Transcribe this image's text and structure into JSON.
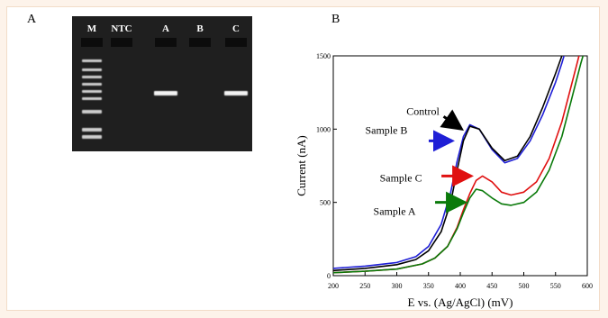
{
  "panels": {
    "left_label": "A",
    "right_label": "B"
  },
  "gel": {
    "lanes": [
      "M",
      "NTC",
      "A",
      "B",
      "C"
    ],
    "ladder_band_count": 9,
    "bands_present": {
      "M": true,
      "NTC": false,
      "A": true,
      "B": false,
      "C": true
    }
  },
  "chart_data": {
    "type": "line",
    "xlabel": "E vs. (Ag/AgCl) (mV)",
    "ylabel": "Current (nA)",
    "xlim": [
      200,
      600
    ],
    "ylim": [
      0,
      1500
    ],
    "xticks": [
      200,
      250,
      300,
      350,
      400,
      450,
      500,
      550,
      600
    ],
    "yticks": [
      0,
      500,
      1000,
      1500
    ],
    "grid": false,
    "annotations": [
      {
        "text": "Control",
        "color": "#000000",
        "arrow_to": [
          405,
          1000
        ]
      },
      {
        "text": "Sample B",
        "color": "#1f1fd6",
        "arrow_to": [
          390,
          920
        ]
      },
      {
        "text": "Sample C",
        "color": "#e01010",
        "arrow_to": [
          420,
          680
        ]
      },
      {
        "text": "Sample A",
        "color": "#0a7a0a",
        "arrow_to": [
          410,
          500
        ]
      }
    ],
    "series": [
      {
        "color": "#1f1fd6",
        "x": [
          200,
          250,
          300,
          330,
          350,
          370,
          385,
          395,
          405,
          415,
          430,
          450,
          470,
          490,
          510,
          530,
          550,
          560,
          570,
          580
        ],
        "y": [
          50,
          65,
          90,
          130,
          200,
          350,
          570,
          780,
          950,
          1030,
          1000,
          860,
          770,
          800,
          920,
          1100,
          1320,
          1450,
          1600,
          1750
        ]
      },
      {
        "color": "#000000",
        "x": [
          200,
          250,
          300,
          330,
          350,
          370,
          385,
          395,
          405,
          415,
          430,
          450,
          470,
          490,
          510,
          530,
          550,
          560,
          570,
          580
        ],
        "y": [
          35,
          50,
          75,
          110,
          170,
          300,
          500,
          720,
          920,
          1020,
          1000,
          870,
          785,
          815,
          950,
          1150,
          1380,
          1500,
          1650,
          1800
        ]
      },
      {
        "color": "#e01010",
        "x": [
          200,
          250,
          300,
          340,
          360,
          380,
          395,
          405,
          415,
          425,
          435,
          450,
          465,
          480,
          500,
          520,
          540,
          560,
          575,
          590,
          600
        ],
        "y": [
          20,
          30,
          45,
          80,
          120,
          200,
          330,
          450,
          560,
          650,
          680,
          640,
          570,
          550,
          570,
          640,
          800,
          1050,
          1300,
          1550,
          1700
        ]
      },
      {
        "color": "#0a7a0a",
        "x": [
          200,
          250,
          300,
          340,
          360,
          380,
          395,
          405,
          415,
          425,
          435,
          450,
          465,
          480,
          500,
          520,
          540,
          560,
          575,
          590,
          600
        ],
        "y": [
          20,
          30,
          45,
          80,
          120,
          200,
          320,
          430,
          530,
          590,
          580,
          530,
          490,
          480,
          500,
          570,
          720,
          950,
          1200,
          1450,
          1600
        ]
      }
    ]
  }
}
